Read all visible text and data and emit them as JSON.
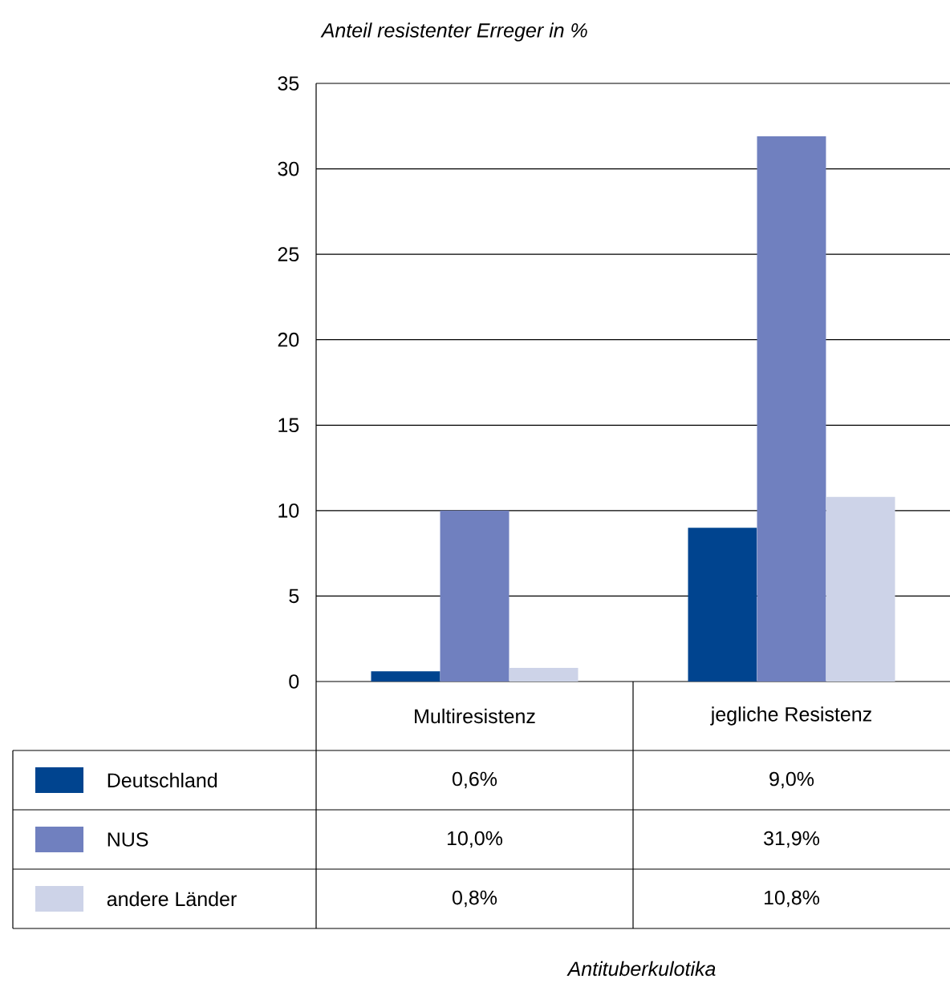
{
  "chart_data": {
    "type": "bar",
    "ylabel": "Anteil resistenter Erreger in %",
    "annotations": [
      "Antituberkulotika"
    ],
    "categories": [
      "Multiresistenz",
      "jegliche Resistenz"
    ],
    "series": [
      {
        "name": "Deutschland",
        "color": "#00448f",
        "values": [
          0.6,
          9.0
        ],
        "value_labels": [
          "0,6%",
          "9,0%"
        ]
      },
      {
        "name": "NUS",
        "color": "#7080bf",
        "values": [
          10.0,
          31.9
        ],
        "value_labels": [
          "10,0%",
          "31,9%"
        ]
      },
      {
        "name": "andere Länder",
        "color": "#cdd3e8",
        "values": [
          0.8,
          10.8
        ],
        "value_labels": [
          "0,8%",
          "10,8%"
        ]
      }
    ],
    "ylim": [
      0,
      35
    ],
    "yticks": [
      0,
      5,
      10,
      15,
      20,
      25,
      30,
      35
    ],
    "grid": "y",
    "legend": "bottom"
  }
}
